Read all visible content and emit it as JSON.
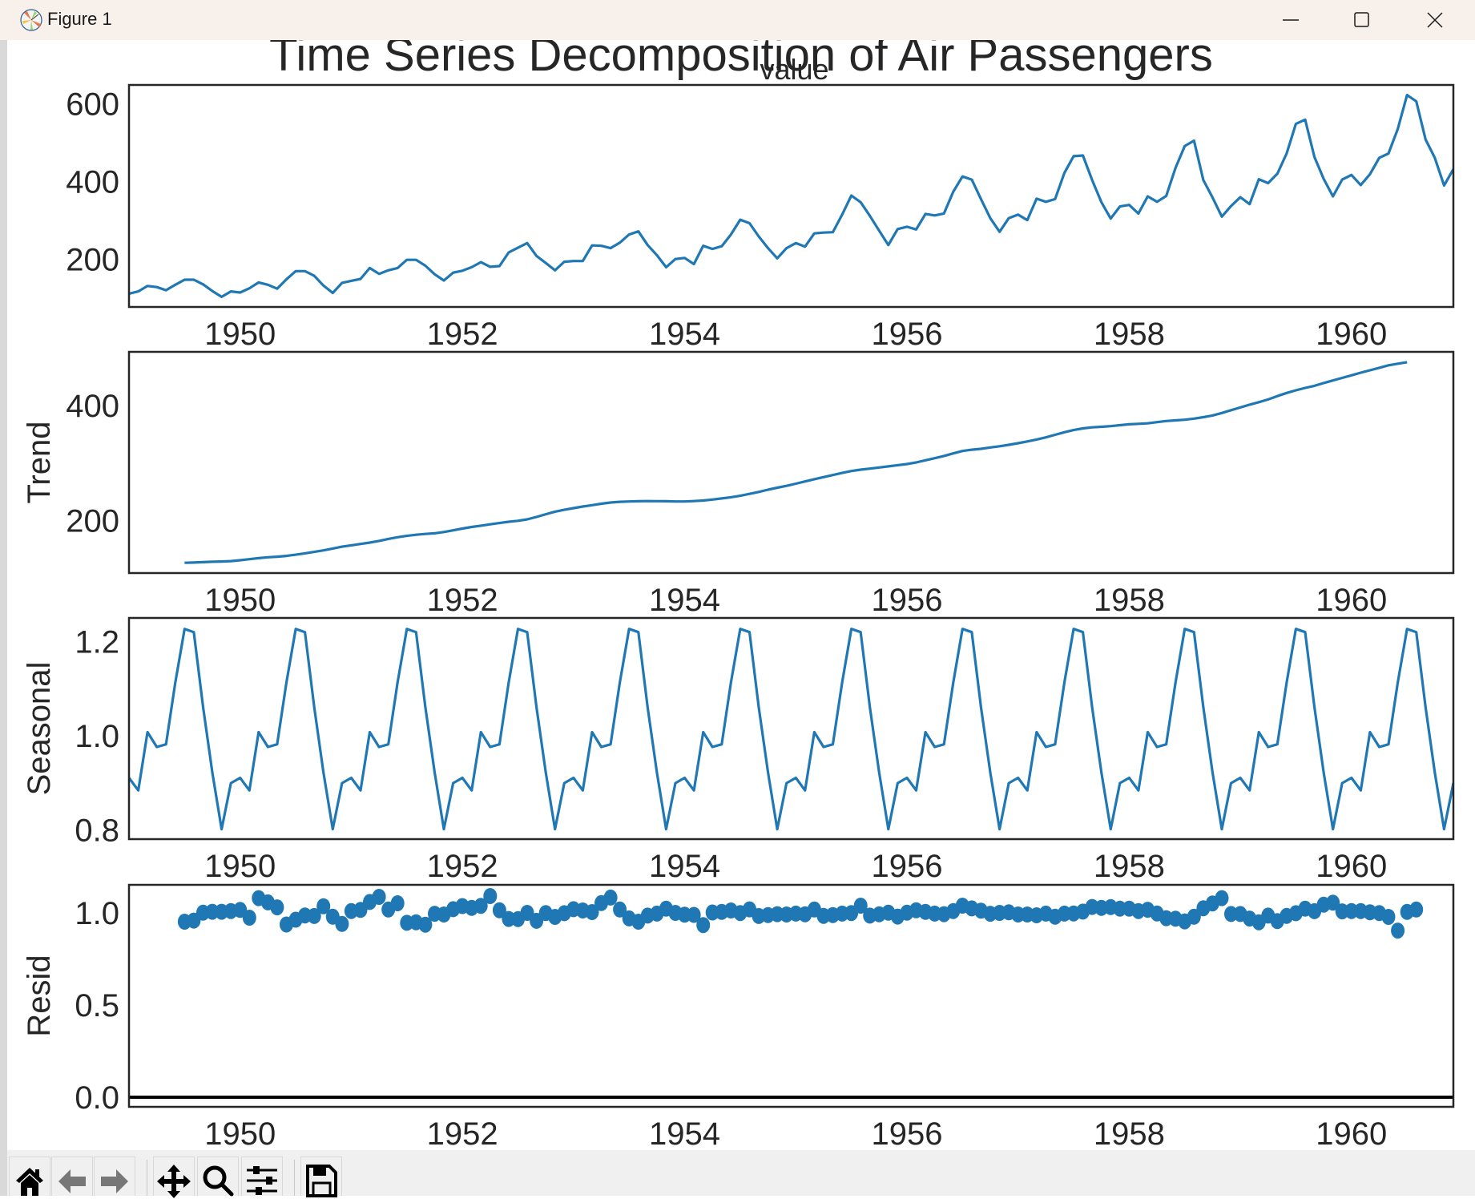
{
  "window": {
    "title": "Figure 1",
    "icon": "matplotlib-logo-icon",
    "controls": [
      "minimize-icon",
      "maximize-icon",
      "close-icon"
    ]
  },
  "toolbar": {
    "buttons": [
      {
        "name": "home-button",
        "icon": "home-icon",
        "tooltip": "Reset original view"
      },
      {
        "name": "back-button",
        "icon": "arrow-left-icon",
        "tooltip": "Back"
      },
      {
        "name": "forward-button",
        "icon": "arrow-right-icon",
        "tooltip": "Forward"
      },
      {
        "name": "pan-button",
        "icon": "move-icon",
        "tooltip": "Pan"
      },
      {
        "name": "zoom-button",
        "icon": "magnifier-icon",
        "tooltip": "Zoom"
      },
      {
        "name": "configure-button",
        "icon": "sliders-icon",
        "tooltip": "Configure subplots"
      },
      {
        "name": "save-button",
        "icon": "floppy-disk-icon",
        "tooltip": "Save"
      }
    ]
  },
  "chart_data": {
    "suptitle": "Time Series Decomposition of Air Passengers",
    "line_color": "#1f77b4",
    "x_start": "1949-01",
    "x_frequency": "monthly",
    "xlim": [
      1949.0,
      1960.917
    ],
    "xticks": [
      1950,
      1952,
      1954,
      1956,
      1958,
      1960
    ],
    "xtick_labels": [
      "1950",
      "1952",
      "1954",
      "1956",
      "1958",
      "1960"
    ],
    "panels": [
      {
        "type": "line",
        "title": "value",
        "ylabel": "",
        "ylim": [
          78,
          648
        ],
        "yticks": [
          200,
          400,
          600
        ],
        "ytick_labels": [
          "200",
          "400",
          "600"
        ],
        "start_index": 0,
        "values": [
          112,
          118,
          132,
          129,
          121,
          135,
          148,
          148,
          136,
          119,
          104,
          118,
          115,
          126,
          141,
          135,
          125,
          149,
          170,
          170,
          158,
          133,
          114,
          140,
          145,
          150,
          178,
          163,
          172,
          178,
          199,
          199,
          184,
          162,
          146,
          166,
          171,
          180,
          193,
          181,
          183,
          218,
          230,
          242,
          209,
          191,
          172,
          194,
          196,
          196,
          236,
          235,
          229,
          243,
          264,
          272,
          237,
          211,
          180,
          201,
          204,
          188,
          235,
          227,
          234,
          264,
          302,
          293,
          259,
          229,
          203,
          229,
          242,
          233,
          267,
          269,
          270,
          315,
          364,
          347,
          312,
          274,
          237,
          278,
          284,
          277,
          317,
          313,
          318,
          374,
          413,
          405,
          355,
          306,
          271,
          306,
          315,
          301,
          356,
          348,
          355,
          422,
          465,
          467,
          404,
          347,
          305,
          336,
          340,
          318,
          362,
          348,
          363,
          435,
          491,
          505,
          404,
          359,
          310,
          337,
          360,
          342,
          406,
          396,
          420,
          472,
          548,
          559,
          463,
          407,
          362,
          405,
          417,
          391,
          419,
          461,
          472,
          535,
          622,
          606,
          508,
          461,
          390,
          432
        ]
      },
      {
        "type": "line",
        "title": "",
        "ylabel": "Trend",
        "ylim": [
          109,
          493
        ],
        "yticks": [
          200,
          400
        ],
        "ytick_labels": [
          "200",
          "400"
        ],
        "start_index": 6,
        "values": [
          126.79,
          127.25,
          127.96,
          128.58,
          129.0,
          129.75,
          131.25,
          133.08,
          134.92,
          136.42,
          137.42,
          138.75,
          140.92,
          143.17,
          145.71,
          148.42,
          151.54,
          154.71,
          157.13,
          159.54,
          161.83,
          164.75,
          168.21,
          171.21,
          173.58,
          175.46,
          176.83,
          178.04,
          180.17,
          183.13,
          186.21,
          189.04,
          191.29,
          193.58,
          195.83,
          198.04,
          199.75,
          202.21,
          206.42,
          211.13,
          215.58,
          218.79,
          221.75,
          224.5,
          226.88,
          229.38,
          231.5,
          232.75,
          233.21,
          233.71,
          233.92,
          233.79,
          233.63,
          233.25,
          233.21,
          234.0,
          234.96,
          236.63,
          238.58,
          240.58,
          243.17,
          246.5,
          249.79,
          253.75,
          257.13,
          260.38,
          264.13,
          268.04,
          271.92,
          275.5,
          279.17,
          282.83,
          286.08,
          288.42,
          290.25,
          292.25,
          294.21,
          296.25,
          298.17,
          301.0,
          304.71,
          308.38,
          312.25,
          316.75,
          320.83,
          323.13,
          324.71,
          327.04,
          329.13,
          331.54,
          334.33,
          337.42,
          340.75,
          344.54,
          348.96,
          353.46,
          357.25,
          360.13,
          361.88,
          362.92,
          364.04,
          365.67,
          367.25,
          368.04,
          368.83,
          370.96,
          372.92,
          374.0,
          375.21,
          377.04,
          379.58,
          382.54,
          386.83,
          391.75,
          396.42,
          401.25,
          405.63,
          410.33,
          416.25,
          421.67,
          426.21,
          430.33,
          434.0,
          438.92,
          443.38,
          447.79,
          452.17,
          456.88,
          461.0,
          465.25,
          469.63,
          472.42,
          475.04
        ]
      },
      {
        "type": "line",
        "title": "",
        "ylabel": "Seasonal",
        "ylim": [
          0.78,
          1.25
        ],
        "yticks": [
          0.8,
          1.0,
          1.2
        ],
        "ytick_labels": [
          "0.8",
          "1.0",
          "1.2"
        ],
        "pattern_monthly_jan_to_dec": [
          0.9102,
          0.8836,
          1.0073,
          0.9759,
          0.9814,
          1.1128,
          1.2266,
          1.2199,
          1.0605,
          0.9217,
          0.8011,
          0.899
        ],
        "repeat_years": 12
      },
      {
        "type": "scatter",
        "title": "",
        "ylabel": "Resid",
        "ylim": [
          -0.052,
          1.152
        ],
        "yticks": [
          0.0,
          0.5,
          1.0
        ],
        "ytick_labels": [
          "0.0",
          "0.5",
          "1.0"
        ],
        "hline": 0.0,
        "start_index": 6,
        "values": [
          0.952,
          0.958,
          1.001,
          1.006,
          1.006,
          1.01,
          1.016,
          0.974,
          1.08,
          1.057,
          1.03,
          0.937,
          0.963,
          0.986,
          0.983,
          1.036,
          0.979,
          0.94,
          1.01,
          1.016,
          1.059,
          1.087,
          1.018,
          1.052,
          0.946,
          0.949,
          0.936,
          0.995,
          0.991,
          1.02,
          1.037,
          1.027,
          1.038,
          1.091,
          1.014,
          0.967,
          0.966,
          1.0,
          0.957,
          0.999,
          0.978,
          0.998,
          1.02,
          1.013,
          1.004,
          1.053,
          1.083,
          1.018,
          0.97,
          0.952,
          0.985,
          0.996,
          1.023,
          1.0,
          0.99,
          0.989,
          0.934,
          1.002,
          1.005,
          1.013,
          0.999,
          1.019,
          0.983,
          0.988,
          0.993,
          0.991,
          0.996,
          0.992,
          1.018,
          0.984,
          0.988,
          0.996,
          0.999,
          1.039,
          0.985,
          0.992,
          1.001,
          0.98,
          1.001,
          1.014,
          1.005,
          0.996,
          0.993,
          1.01,
          1.039,
          1.024,
          1.012,
          0.995,
          1.0,
          1.003,
          0.991,
          0.991,
          0.987,
          0.996,
          0.979,
          0.996,
          0.997,
          1.007,
          1.032,
          1.027,
          1.031,
          1.023,
          1.023,
          1.01,
          1.017,
          0.997,
          0.971,
          0.968,
          0.954,
          0.979,
          1.025,
          1.051,
          1.08,
          0.994,
          0.994,
          0.969,
          0.949,
          0.985,
          0.955,
          0.984,
          0.998,
          1.023,
          1.009,
          1.044,
          1.055,
          1.008,
          1.01,
          1.01,
          1.003,
          0.999,
          0.978,
          0.904,
          1.005,
          1.018
        ]
      }
    ]
  }
}
